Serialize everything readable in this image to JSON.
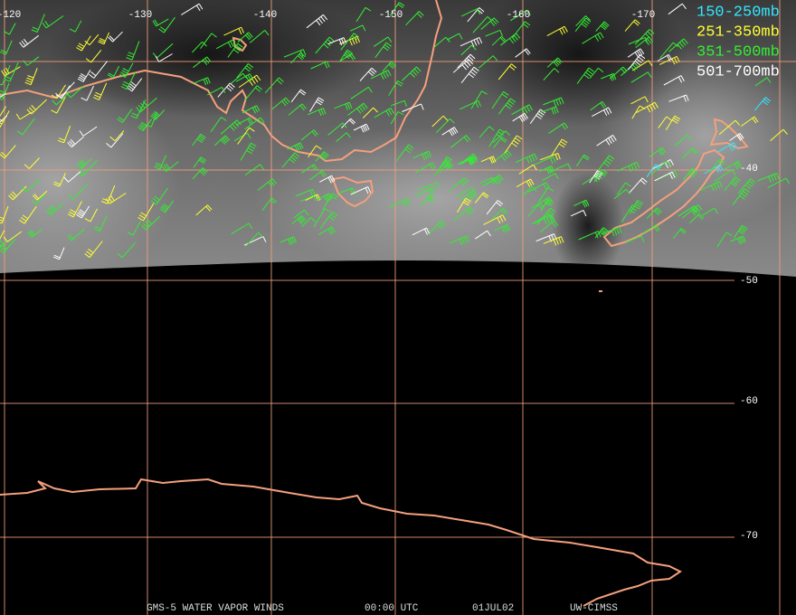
{
  "map": {
    "longitude_labels": [
      "-120",
      "-130",
      "-140",
      "-150",
      "-160",
      "-170"
    ],
    "latitude_labels": [
      "-40",
      "-50",
      "-60",
      "-70"
    ]
  },
  "legend": [
    {
      "label": "150-250mb",
      "color": "#33e6ff"
    },
    {
      "label": "251-350mb",
      "color": "#ffff33"
    },
    {
      "label": "351-500mb",
      "color": "#33ee33"
    },
    {
      "label": "501-700mb",
      "color": "#ffffff"
    }
  ],
  "footer": [
    "GMS-5 WATER VAPOR WINDS",
    "00:00 UTC",
    "01JUL02",
    "UW-CIMSS"
  ]
}
